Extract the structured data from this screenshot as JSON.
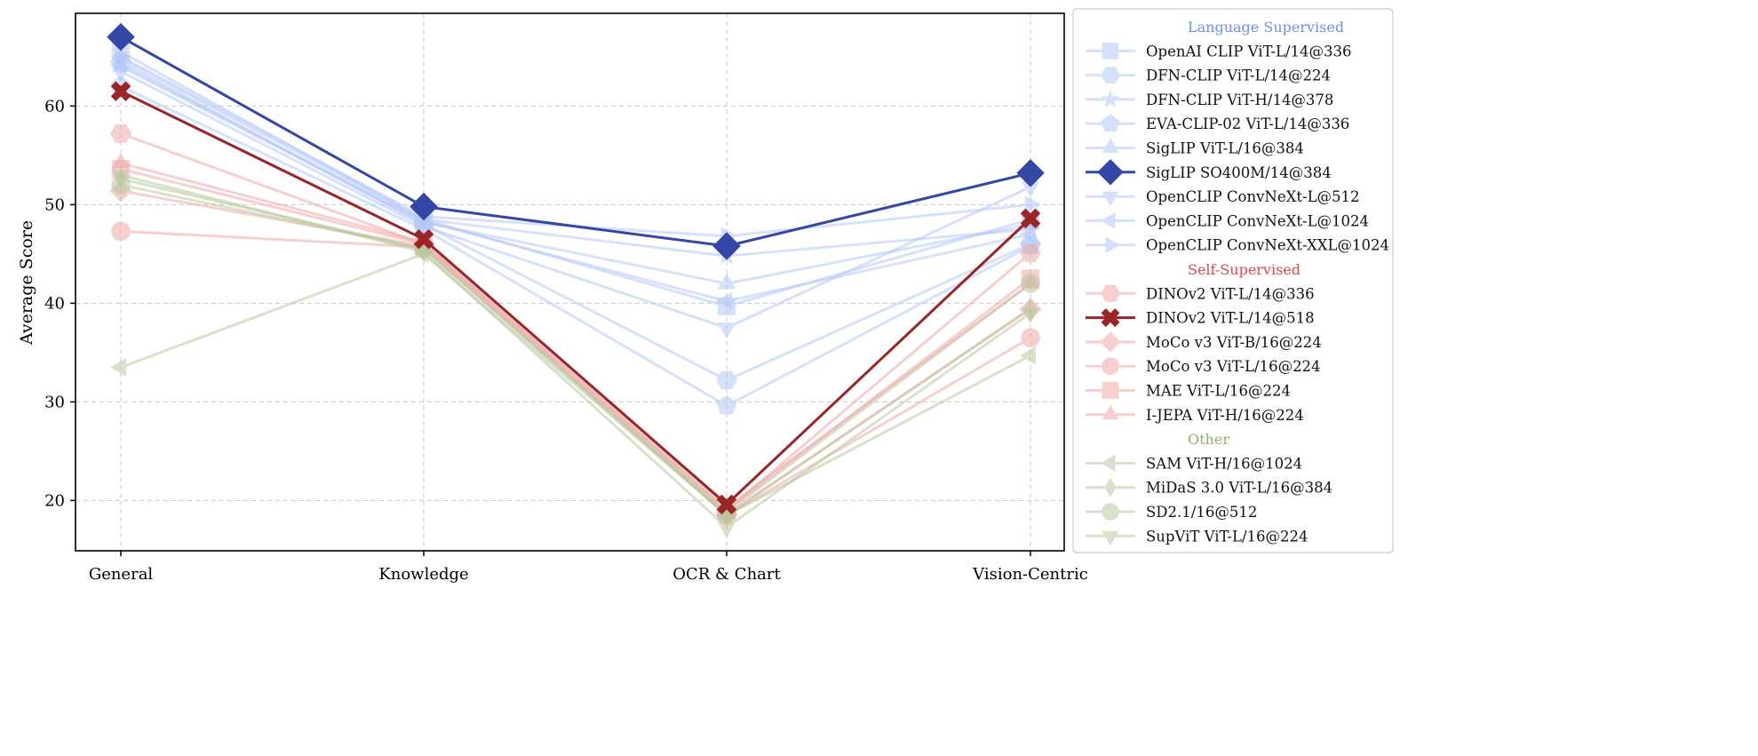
{
  "chart_data": {
    "type": "line",
    "title": "",
    "xlabel": "",
    "ylabel": "Average Score",
    "categories": [
      "General",
      "Knowledge",
      "OCR & Chart",
      "Vision-Centric"
    ],
    "ylim": [
      14.9,
      69.4
    ],
    "yticks": [
      20,
      30,
      40,
      50,
      60
    ],
    "grid": true,
    "legend_placement": "outside-right",
    "colors": {
      "lang_light": "#b4c8f8",
      "lang_dark": "#3347a6",
      "self_light": "#f2a8a8",
      "self_dark": "#9b2427",
      "other_light": "#b9c99f",
      "lang_header": "#6f8ef0",
      "self_header": "#e04848",
      "other_header": "#93b26c"
    },
    "groups": [
      {
        "name": "Language Supervised",
        "header_color": "lang_header",
        "series": [
          {
            "name": "OpenAI CLIP ViT-L/14@336",
            "marker": "square",
            "color": "lang_light",
            "values": [
              65.5,
              48.5,
              39.7,
              48.5
            ]
          },
          {
            "name": "DFN-CLIP ViT-L/14@224",
            "marker": "hexagon",
            "color": "lang_light",
            "values": [
              64.5,
              48.0,
              32.2,
              46.0
            ]
          },
          {
            "name": "DFN-CLIP ViT-H/14@378",
            "marker": "star",
            "color": "lang_light",
            "values": [
              64.8,
              48.5,
              44.8,
              47.5
            ]
          },
          {
            "name": "EVA-CLIP-02 ViT-L/14@336",
            "marker": "pentagon",
            "color": "lang_light",
            "values": [
              62.0,
              47.5,
              29.6,
              45.8
            ]
          },
          {
            "name": "SigLIP ViT-L/16@384",
            "marker": "triangle-up",
            "color": "lang_light",
            "values": [
              64.0,
              48.2,
              42.0,
              48.0
            ]
          },
          {
            "name": "SigLIP SO400M/14@384",
            "marker": "diamond",
            "color": "lang_dark",
            "highlight": true,
            "values": [
              67.0,
              49.8,
              45.8,
              53.2
            ]
          },
          {
            "name": "OpenCLIP ConvNeXt-L@512",
            "marker": "triangle-down",
            "color": "lang_light",
            "values": [
              63.5,
              47.8,
              37.5,
              51.8
            ]
          },
          {
            "name": "OpenCLIP ConvNeXt-L@1024",
            "marker": "triangle-left",
            "color": "lang_light",
            "values": [
              64.2,
              48.3,
              40.2,
              47.0
            ]
          },
          {
            "name": "OpenCLIP ConvNeXt-XXL@1024",
            "marker": "triangle-right",
            "color": "lang_light",
            "values": [
              65.0,
              48.8,
              46.8,
              50.0
            ]
          }
        ]
      },
      {
        "name": "Self-Supervised",
        "header_color": "self_header",
        "series": [
          {
            "name": "DINOv2 ViT-L/14@336",
            "marker": "hexagon",
            "color": "self_light",
            "values": [
              57.2,
              46.0,
              19.0,
              45.1
            ]
          },
          {
            "name": "DINOv2 ViT-L/14@518",
            "marker": "x",
            "color": "self_dark",
            "highlight": true,
            "values": [
              61.5,
              46.5,
              19.6,
              48.6
            ]
          },
          {
            "name": "MoCo v3 ViT-B/16@224",
            "marker": "diamond",
            "color": "self_light",
            "values": [
              51.4,
              45.8,
              18.6,
              39.4
            ]
          },
          {
            "name": "MoCo v3 ViT-L/16@224",
            "marker": "circle",
            "color": "self_light",
            "values": [
              47.3,
              45.7,
              18.5,
              36.5
            ]
          },
          {
            "name": "MAE ViT-L/16@224",
            "marker": "square",
            "color": "self_light",
            "values": [
              53.6,
              46.0,
              19.0,
              42.5
            ]
          },
          {
            "name": "I-JEPA ViT-H/16@224",
            "marker": "triangle-up",
            "color": "self_light",
            "values": [
              54.2,
              46.2,
              19.3,
              42.0
            ]
          }
        ]
      },
      {
        "name": "Other",
        "header_color": "other_header",
        "series": [
          {
            "name": "SAM ViT-H/16@1024",
            "marker": "triangle-left",
            "color": "other_light",
            "values": [
              33.5,
              45.0,
              18.5,
              34.7
            ]
          },
          {
            "name": "MiDaS 3.0 ViT-L/16@384",
            "marker": "thin-diamond",
            "color": "other_light",
            "values": [
              52.6,
              45.5,
              18.5,
              39.5
            ]
          },
          {
            "name": "SD2.1/16@512",
            "marker": "circle",
            "color": "other_light",
            "values": [
              52.0,
              45.5,
              18.8,
              42.0
            ]
          },
          {
            "name": "SupViT ViT-L/16@224",
            "marker": "triangle-down",
            "color": "other_light",
            "values": [
              53.0,
              45.2,
              17.3,
              39.0
            ]
          }
        ]
      }
    ]
  }
}
